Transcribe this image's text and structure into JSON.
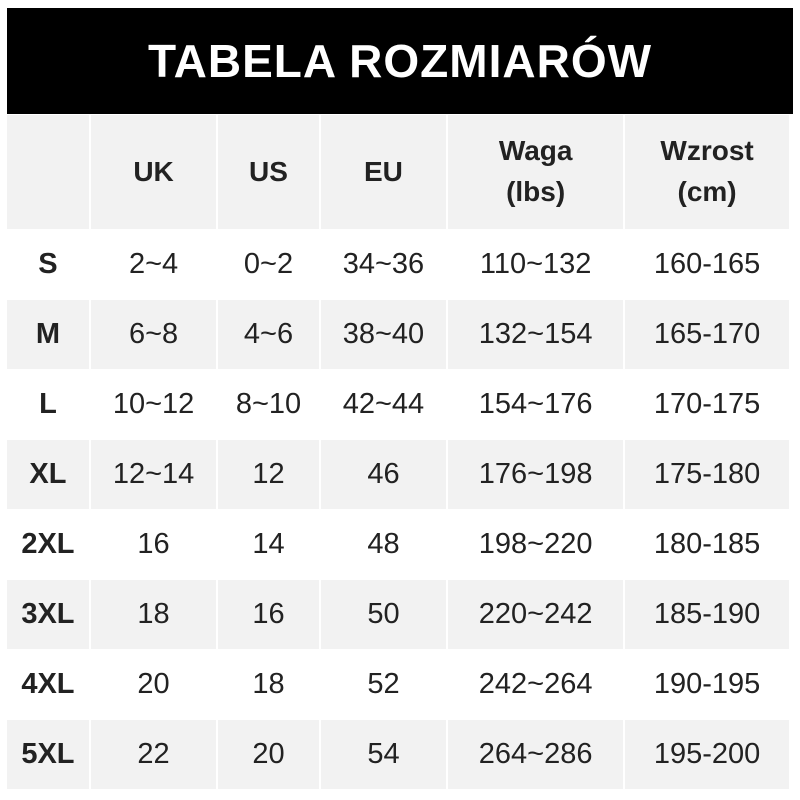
{
  "title": "TABELA ROZMIARÓW",
  "headers": [
    "",
    "UK",
    "US",
    "EU",
    "Waga\n(lbs)",
    "Wzrost\n(cm)"
  ],
  "header_lines": [
    [
      "",
      ""
    ],
    [
      "UK",
      ""
    ],
    [
      "US",
      ""
    ],
    [
      "EU",
      ""
    ],
    [
      "Waga",
      "(lbs)"
    ],
    [
      "Wzrost",
      "(cm)"
    ]
  ],
  "rows": [
    [
      "S",
      "2~4",
      "0~2",
      "34~36",
      "110~132",
      "160-165"
    ],
    [
      "M",
      "6~8",
      "4~6",
      "38~40",
      "132~154",
      "165-170"
    ],
    [
      "L",
      "10~12",
      "8~10",
      "42~44",
      "154~176",
      "170-175"
    ],
    [
      "XL",
      "12~14",
      "12",
      "46",
      "176~198",
      "175-180"
    ],
    [
      "2XL",
      "16",
      "14",
      "48",
      "198~220",
      "180-185"
    ],
    [
      "3XL",
      "18",
      "16",
      "50",
      "220~242",
      "185-190"
    ],
    [
      "4XL",
      "20",
      "18",
      "52",
      "242~264",
      "190-195"
    ],
    [
      "5XL",
      "22",
      "20",
      "54",
      "264~286",
      "195-200"
    ]
  ],
  "colors": {
    "header_bg": "#000000",
    "stripe": "#f2f2f2"
  }
}
